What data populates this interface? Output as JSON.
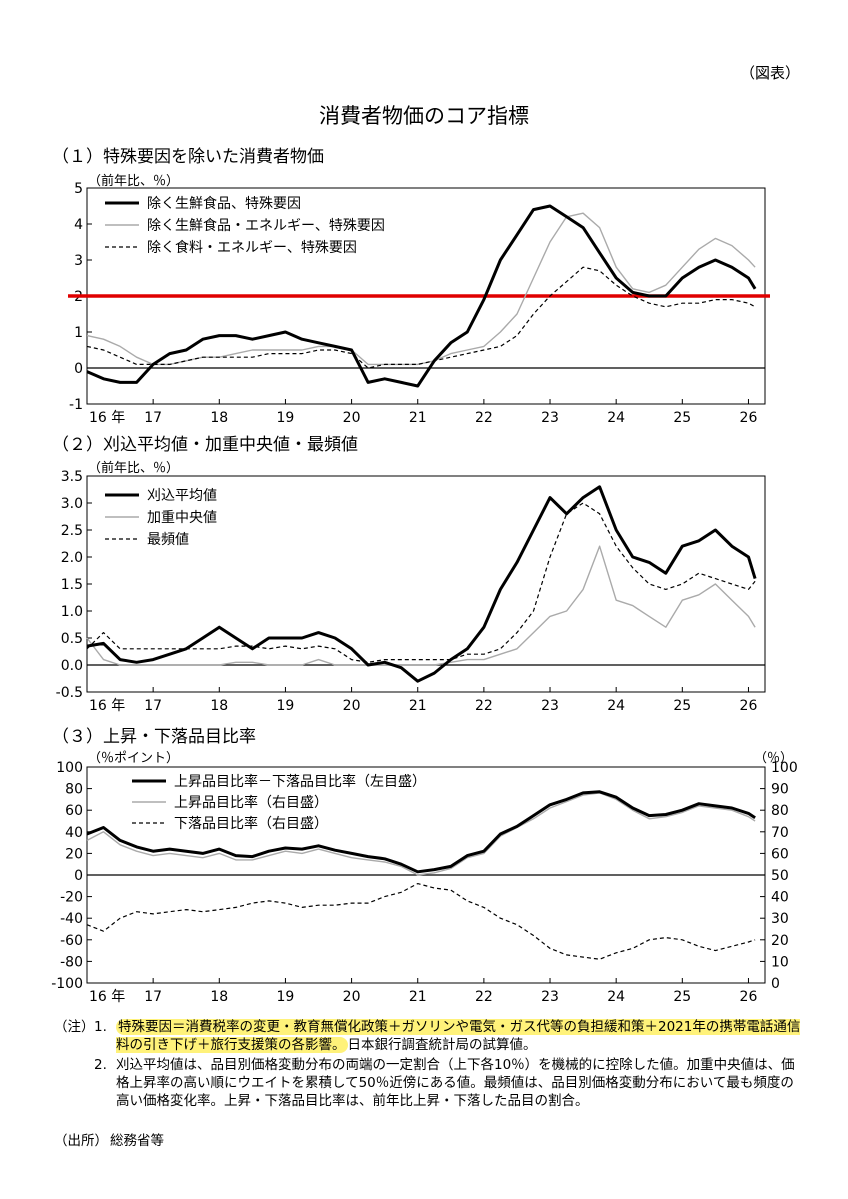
{
  "header": {
    "figure_tag": "（図表）",
    "title": "消費者物価のコア指標"
  },
  "chart_data": [
    {
      "type": "line",
      "title": "（１）特殊要因を除いた消費者物価",
      "ylabel": "（前年比、％）",
      "ylim": [
        -1,
        5
      ],
      "yticks": [
        -1,
        0,
        1,
        2,
        3,
        4,
        5
      ],
      "xlim": [
        2016,
        2026.25
      ],
      "x_tick_labels": [
        "16 年",
        "17",
        "18",
        "19",
        "20",
        "21",
        "22",
        "23",
        "24",
        "25",
        "26"
      ],
      "reference_line": {
        "value": 2,
        "color": "#e00000"
      },
      "legend_position": "top-left",
      "series": [
        {
          "name": "除く生鮮食品、特殊要因",
          "style": "solid-thick",
          "color": "#000000",
          "x": [
            2016.0,
            2016.25,
            2016.5,
            2016.75,
            2017.0,
            2017.25,
            2017.5,
            2017.75,
            2018.0,
            2018.25,
            2018.5,
            2018.75,
            2019.0,
            2019.25,
            2019.5,
            2019.75,
            2020.0,
            2020.25,
            2020.5,
            2020.75,
            2021.0,
            2021.25,
            2021.5,
            2021.75,
            2022.0,
            2022.25,
            2022.5,
            2022.75,
            2023.0,
            2023.25,
            2023.5,
            2023.75,
            2024.0,
            2024.25,
            2024.5,
            2024.75,
            2025.0,
            2025.25,
            2025.5,
            2025.75,
            2026.0,
            2026.1
          ],
          "y": [
            -0.1,
            -0.3,
            -0.4,
            -0.4,
            0.1,
            0.4,
            0.5,
            0.8,
            0.9,
            0.9,
            0.8,
            0.9,
            1.0,
            0.8,
            0.7,
            0.6,
            0.5,
            -0.4,
            -0.3,
            -0.4,
            -0.5,
            0.2,
            0.7,
            1.0,
            1.9,
            3.0,
            3.7,
            4.4,
            4.5,
            4.2,
            3.9,
            3.2,
            2.5,
            2.1,
            2.0,
            2.0,
            2.5,
            2.8,
            3.0,
            2.8,
            2.5,
            2.2
          ]
        },
        {
          "name": "除く生鮮食品・エネルギー、特殊要因",
          "style": "solid-thin",
          "color": "#aaaaaa",
          "x": [
            2016.0,
            2016.25,
            2016.5,
            2016.75,
            2017.0,
            2017.25,
            2017.5,
            2017.75,
            2018.0,
            2018.25,
            2018.5,
            2018.75,
            2019.0,
            2019.25,
            2019.5,
            2019.75,
            2020.0,
            2020.25,
            2020.5,
            2020.75,
            2021.0,
            2021.25,
            2021.5,
            2021.75,
            2022.0,
            2022.25,
            2022.5,
            2022.75,
            2023.0,
            2023.25,
            2023.5,
            2023.75,
            2024.0,
            2024.25,
            2024.5,
            2024.75,
            2025.0,
            2025.25,
            2025.5,
            2025.75,
            2026.0,
            2026.1
          ],
          "y": [
            0.9,
            0.8,
            0.6,
            0.3,
            0.1,
            0.1,
            0.2,
            0.3,
            0.3,
            0.4,
            0.5,
            0.5,
            0.5,
            0.5,
            0.6,
            0.6,
            0.5,
            0.1,
            0.1,
            0.1,
            0.1,
            0.2,
            0.4,
            0.5,
            0.6,
            1.0,
            1.5,
            2.5,
            3.5,
            4.2,
            4.3,
            3.9,
            2.8,
            2.2,
            2.1,
            2.3,
            2.8,
            3.3,
            3.6,
            3.4,
            3.0,
            2.8
          ]
        },
        {
          "name": "除く食料・エネルギー、特殊要因",
          "style": "dashed",
          "color": "#000000",
          "x": [
            2016.0,
            2016.25,
            2016.5,
            2016.75,
            2017.0,
            2017.25,
            2017.5,
            2017.75,
            2018.0,
            2018.25,
            2018.5,
            2018.75,
            2019.0,
            2019.25,
            2019.5,
            2019.75,
            2020.0,
            2020.25,
            2020.5,
            2020.75,
            2021.0,
            2021.25,
            2021.5,
            2021.75,
            2022.0,
            2022.25,
            2022.5,
            2022.75,
            2023.0,
            2023.25,
            2023.5,
            2023.75,
            2024.0,
            2024.25,
            2024.5,
            2024.75,
            2025.0,
            2025.25,
            2025.5,
            2025.75,
            2026.0,
            2026.1
          ],
          "y": [
            0.6,
            0.5,
            0.3,
            0.1,
            0.1,
            0.1,
            0.2,
            0.3,
            0.3,
            0.3,
            0.3,
            0.4,
            0.4,
            0.4,
            0.5,
            0.5,
            0.4,
            0.0,
            0.1,
            0.1,
            0.1,
            0.2,
            0.3,
            0.4,
            0.5,
            0.6,
            0.9,
            1.5,
            2.0,
            2.4,
            2.8,
            2.7,
            2.3,
            2.0,
            1.8,
            1.7,
            1.8,
            1.8,
            1.9,
            1.9,
            1.8,
            1.7
          ]
        }
      ]
    },
    {
      "type": "line",
      "title": "（２）刈込平均値・加重中央値・最頻値",
      "ylabel": "（前年比、％）",
      "ylim": [
        -0.5,
        3.5
      ],
      "yticks": [
        -0.5,
        0.0,
        0.5,
        1.0,
        1.5,
        2.0,
        2.5,
        3.0,
        3.5
      ],
      "ytick_labels": [
        "-0.5",
        "0.0",
        "0.5",
        "1.0",
        "1.5",
        "2.0",
        "2.5",
        "3.0",
        "3.5"
      ],
      "xlim": [
        2016,
        2026.25
      ],
      "x_tick_labels": [
        "16 年",
        "17",
        "18",
        "19",
        "20",
        "21",
        "22",
        "23",
        "24",
        "25",
        "26"
      ],
      "legend_position": "top-left",
      "series": [
        {
          "name": "刈込平均値",
          "style": "solid-thick",
          "color": "#000000",
          "x": [
            2016.0,
            2016.25,
            2016.5,
            2016.75,
            2017.0,
            2017.25,
            2017.5,
            2017.75,
            2018.0,
            2018.25,
            2018.5,
            2018.75,
            2019.0,
            2019.25,
            2019.5,
            2019.75,
            2020.0,
            2020.25,
            2020.5,
            2020.75,
            2021.0,
            2021.25,
            2021.5,
            2021.75,
            2022.0,
            2022.25,
            2022.5,
            2022.75,
            2023.0,
            2023.25,
            2023.5,
            2023.75,
            2024.0,
            2024.25,
            2024.5,
            2024.75,
            2025.0,
            2025.25,
            2025.5,
            2025.75,
            2026.0,
            2026.1
          ],
          "y": [
            0.35,
            0.4,
            0.1,
            0.05,
            0.1,
            0.2,
            0.3,
            0.5,
            0.7,
            0.5,
            0.3,
            0.5,
            0.5,
            0.5,
            0.6,
            0.5,
            0.3,
            0.0,
            0.05,
            -0.05,
            -0.3,
            -0.15,
            0.1,
            0.3,
            0.7,
            1.4,
            1.9,
            2.5,
            3.1,
            2.8,
            3.1,
            3.3,
            2.5,
            2.0,
            1.9,
            1.7,
            2.2,
            2.3,
            2.5,
            2.2,
            2.0,
            1.6
          ]
        },
        {
          "name": "加重中央値",
          "style": "solid-thin",
          "color": "#aaaaaa",
          "x": [
            2016.0,
            2016.25,
            2016.5,
            2016.75,
            2017.0,
            2017.25,
            2017.5,
            2017.75,
            2018.0,
            2018.25,
            2018.5,
            2018.75,
            2019.0,
            2019.25,
            2019.5,
            2019.75,
            2020.0,
            2020.25,
            2020.5,
            2020.75,
            2021.0,
            2021.25,
            2021.5,
            2021.75,
            2022.0,
            2022.25,
            2022.5,
            2022.75,
            2023.0,
            2023.25,
            2023.5,
            2023.75,
            2024.0,
            2024.25,
            2024.5,
            2024.75,
            2025.0,
            2025.25,
            2025.5,
            2025.75,
            2026.0,
            2026.1
          ],
          "y": [
            0.5,
            0.1,
            0.0,
            0.0,
            0.0,
            0.0,
            0.0,
            0.0,
            0.0,
            0.05,
            0.05,
            0.0,
            0.0,
            0.0,
            0.1,
            0.0,
            0.0,
            0.0,
            0.0,
            0.0,
            0.0,
            0.0,
            0.05,
            0.1,
            0.1,
            0.2,
            0.3,
            0.6,
            0.9,
            1.0,
            1.4,
            2.2,
            1.2,
            1.1,
            0.9,
            0.7,
            1.2,
            1.3,
            1.5,
            1.2,
            0.9,
            0.7
          ]
        },
        {
          "name": "最頻値",
          "style": "dashed",
          "color": "#000000",
          "x": [
            2016.0,
            2016.25,
            2016.5,
            2016.75,
            2017.0,
            2017.25,
            2017.5,
            2017.75,
            2018.0,
            2018.25,
            2018.5,
            2018.75,
            2019.0,
            2019.25,
            2019.5,
            2019.75,
            2020.0,
            2020.25,
            2020.5,
            2020.75,
            2021.0,
            2021.25,
            2021.5,
            2021.75,
            2022.0,
            2022.25,
            2022.5,
            2022.75,
            2023.0,
            2023.25,
            2023.5,
            2023.75,
            2024.0,
            2024.25,
            2024.5,
            2024.75,
            2025.0,
            2025.25,
            2025.5,
            2025.75,
            2026.0,
            2026.1
          ],
          "y": [
            0.3,
            0.6,
            0.3,
            0.3,
            0.3,
            0.3,
            0.3,
            0.3,
            0.3,
            0.35,
            0.35,
            0.3,
            0.35,
            0.3,
            0.35,
            0.3,
            0.1,
            0.05,
            0.1,
            0.1,
            0.1,
            0.1,
            0.1,
            0.2,
            0.2,
            0.3,
            0.6,
            1.0,
            2.0,
            2.8,
            3.0,
            2.8,
            2.2,
            1.8,
            1.5,
            1.4,
            1.5,
            1.7,
            1.6,
            1.5,
            1.4,
            1.55
          ]
        }
      ]
    },
    {
      "type": "line",
      "title": "（３）上昇・下落品目比率",
      "ylabel": "（％ポイント）",
      "ylabel_right": "（％）",
      "ylim": [
        -100,
        100
      ],
      "yticks": [
        -100,
        -80,
        -60,
        -40,
        -20,
        0,
        20,
        40,
        60,
        80,
        100
      ],
      "ylim_right": [
        0,
        100
      ],
      "yticks_right": [
        0,
        10,
        20,
        30,
        40,
        50,
        60,
        70,
        80,
        90,
        100
      ],
      "xlim": [
        2016,
        2026.25
      ],
      "x_tick_labels": [
        "16 年",
        "17",
        "18",
        "19",
        "20",
        "21",
        "22",
        "23",
        "24",
        "25",
        "26"
      ],
      "legend_position": "top-center",
      "series": [
        {
          "name": "上昇品目比率－下落品目比率（左目盛）",
          "axis": "left",
          "style": "solid-thick",
          "color": "#000000",
          "x": [
            2016.0,
            2016.25,
            2016.5,
            2016.75,
            2017.0,
            2017.25,
            2017.5,
            2017.75,
            2018.0,
            2018.25,
            2018.5,
            2018.75,
            2019.0,
            2019.25,
            2019.5,
            2019.75,
            2020.0,
            2020.25,
            2020.5,
            2020.75,
            2021.0,
            2021.25,
            2021.5,
            2021.75,
            2022.0,
            2022.25,
            2022.5,
            2022.75,
            2023.0,
            2023.25,
            2023.5,
            2023.75,
            2024.0,
            2024.25,
            2024.5,
            2024.75,
            2025.0,
            2025.25,
            2025.5,
            2025.75,
            2026.0,
            2026.1
          ],
          "y": [
            38,
            44,
            32,
            26,
            22,
            24,
            22,
            20,
            24,
            18,
            17,
            22,
            25,
            24,
            27,
            23,
            20,
            17,
            15,
            10,
            3,
            5,
            8,
            18,
            22,
            38,
            45,
            55,
            65,
            70,
            76,
            77,
            72,
            62,
            55,
            56,
            60,
            66,
            64,
            62,
            57,
            53
          ]
        },
        {
          "name": "上昇品目比率（右目盛）",
          "axis": "right",
          "style": "solid-thin",
          "color": "#aaaaaa",
          "x": [
            2016.0,
            2016.25,
            2016.5,
            2016.75,
            2017.0,
            2017.25,
            2017.5,
            2017.75,
            2018.0,
            2018.25,
            2018.5,
            2018.75,
            2019.0,
            2019.25,
            2019.5,
            2019.75,
            2020.0,
            2020.25,
            2020.5,
            2020.75,
            2021.0,
            2021.25,
            2021.5,
            2021.75,
            2022.0,
            2022.25,
            2022.5,
            2022.75,
            2023.0,
            2023.25,
            2023.5,
            2023.75,
            2024.0,
            2024.25,
            2024.5,
            2024.75,
            2025.0,
            2025.25,
            2025.5,
            2025.75,
            2026.0,
            2026.1
          ],
          "y": [
            66,
            70,
            64,
            61,
            59,
            60,
            59,
            58,
            60,
            57,
            57,
            59,
            61,
            60,
            62,
            60,
            58,
            57,
            56,
            54,
            50,
            51,
            53,
            58,
            60,
            68,
            72,
            76,
            81,
            84,
            87,
            88,
            85,
            80,
            76,
            77,
            79,
            82,
            81,
            80,
            77,
            75
          ]
        },
        {
          "name": "下落品目比率（右目盛）",
          "axis": "right",
          "style": "dashed",
          "color": "#000000",
          "x": [
            2016.0,
            2016.25,
            2016.5,
            2016.75,
            2017.0,
            2017.25,
            2017.5,
            2017.75,
            2018.0,
            2018.25,
            2018.5,
            2018.75,
            2019.0,
            2019.25,
            2019.5,
            2019.75,
            2020.0,
            2020.25,
            2020.5,
            2020.75,
            2021.0,
            2021.25,
            2021.5,
            2021.75,
            2022.0,
            2022.25,
            2022.5,
            2022.75,
            2023.0,
            2023.25,
            2023.5,
            2023.75,
            2024.0,
            2024.25,
            2024.5,
            2024.75,
            2025.0,
            2025.25,
            2025.5,
            2025.75,
            2026.0,
            2026.1
          ],
          "y": [
            27,
            24,
            30,
            33,
            32,
            33,
            34,
            33,
            34,
            35,
            37,
            38,
            37,
            35,
            36,
            36,
            37,
            37,
            40,
            42,
            46,
            44,
            43,
            38,
            35,
            30,
            27,
            22,
            16,
            13,
            12,
            11,
            14,
            16,
            20,
            21,
            20,
            17,
            15,
            17,
            19,
            20
          ]
        }
      ]
    }
  ],
  "notes": {
    "label": "（注）",
    "items": [
      {
        "number": "1.",
        "highlighted": "特殊要因＝消費税率の変更・教育無償化政策＋ガソリンや電気・ガス代等の負担緩和策＋2021年の携帯電話通信料の引き下げ＋旅行支援策の各影響。",
        "text": "日本銀行調査統計局の試算値。"
      },
      {
        "number": "2.",
        "text": "刈込平均値は、品目別価格変動分布の両端の一定割合（上下各10％）を機械的に控除した値。加重中央値は、価格上昇率の高い順にウエイトを累積して50％近傍にある値。最頻値は、品目別価格変動分布において最も頻度の高い価格変化率。上昇・下落品目比率は、前年比上昇・下落した品目の割合。"
      }
    ],
    "source_label": "（出所）",
    "source": "総務省等"
  }
}
